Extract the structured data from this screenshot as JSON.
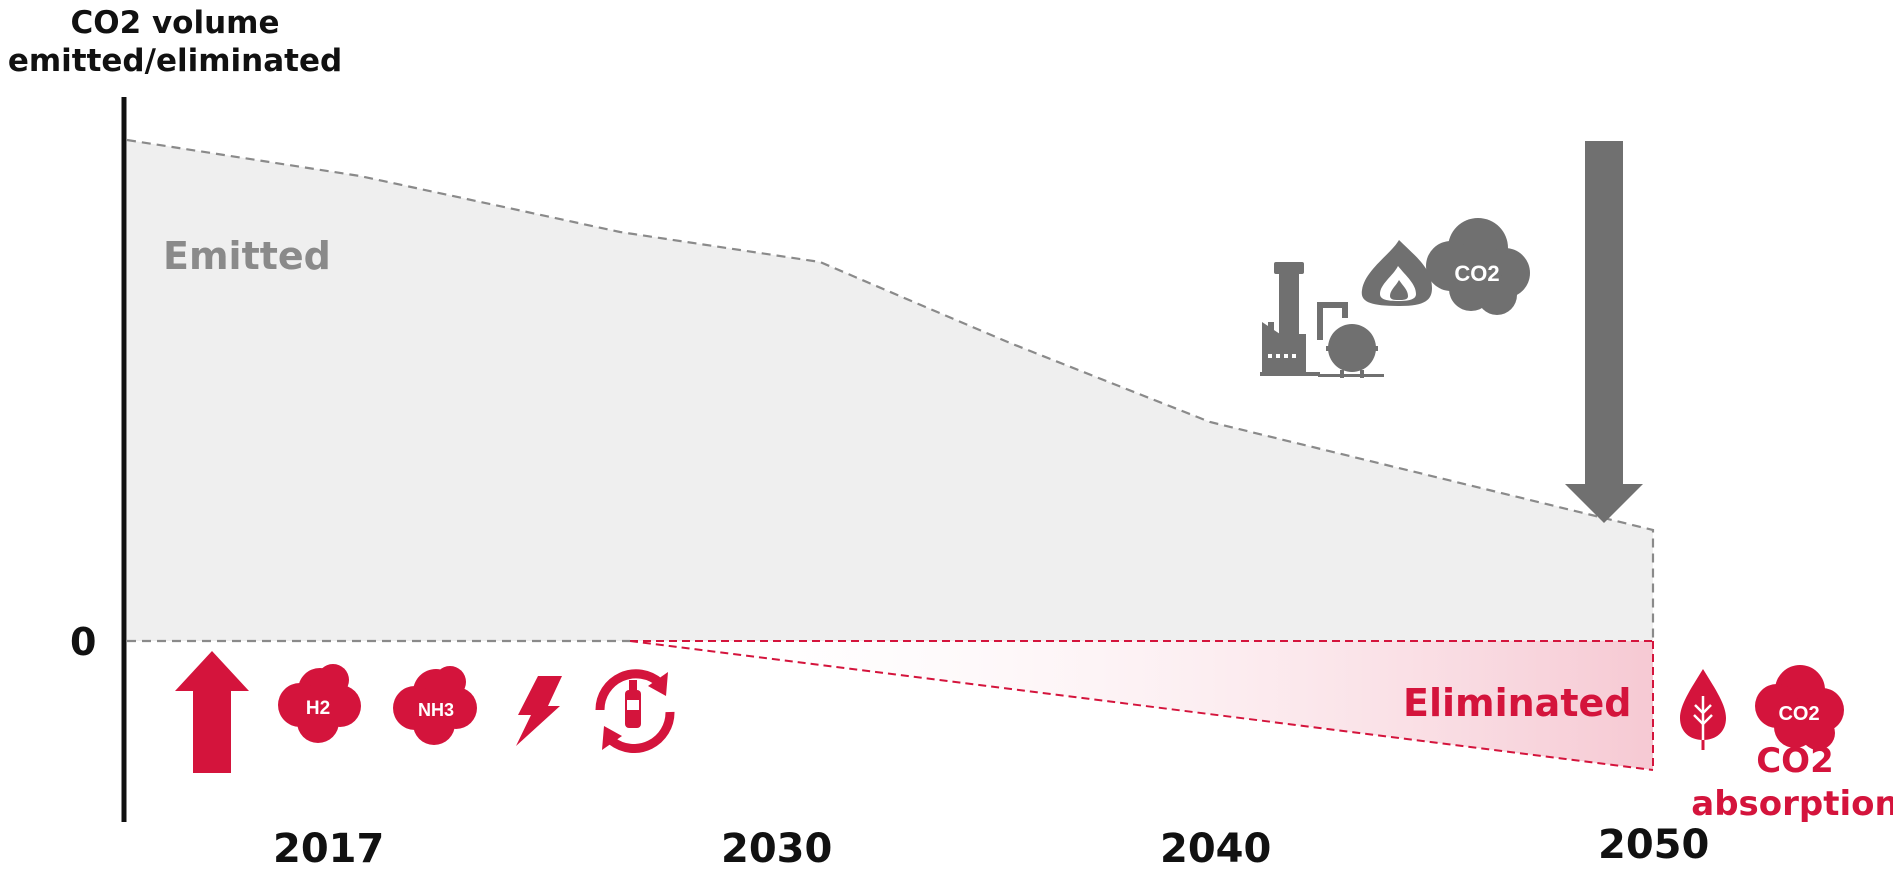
{
  "y_axis_title_line1": "CO2 volume",
  "y_axis_title_line2": "emitted/eliminated",
  "zero_label": "0",
  "x_labels": [
    "2017",
    "2030",
    "2040",
    "2050"
  ],
  "emitted_label": "Emitted",
  "eliminated_label": "Eliminated",
  "absorption_label_line1": "CO2",
  "absorption_label_line2": "absorption",
  "icon_texts": {
    "h2": "H2",
    "nh3": "NH3",
    "co2_grey": "CO2",
    "co2_red": "CO2"
  },
  "icons": [
    "up-arrow",
    "h2-cloud",
    "nh3-cloud",
    "lightning-bolt",
    "bottle-recycle",
    "factory",
    "flame",
    "co2-cloud",
    "down-arrow",
    "leaf-drop",
    "co2-cloud"
  ],
  "colors": {
    "emitted_fill": "#efefef",
    "emitted_line": "#8a8a8a",
    "accent_red": "#d4143c",
    "icon_grey": "#707070"
  }
}
